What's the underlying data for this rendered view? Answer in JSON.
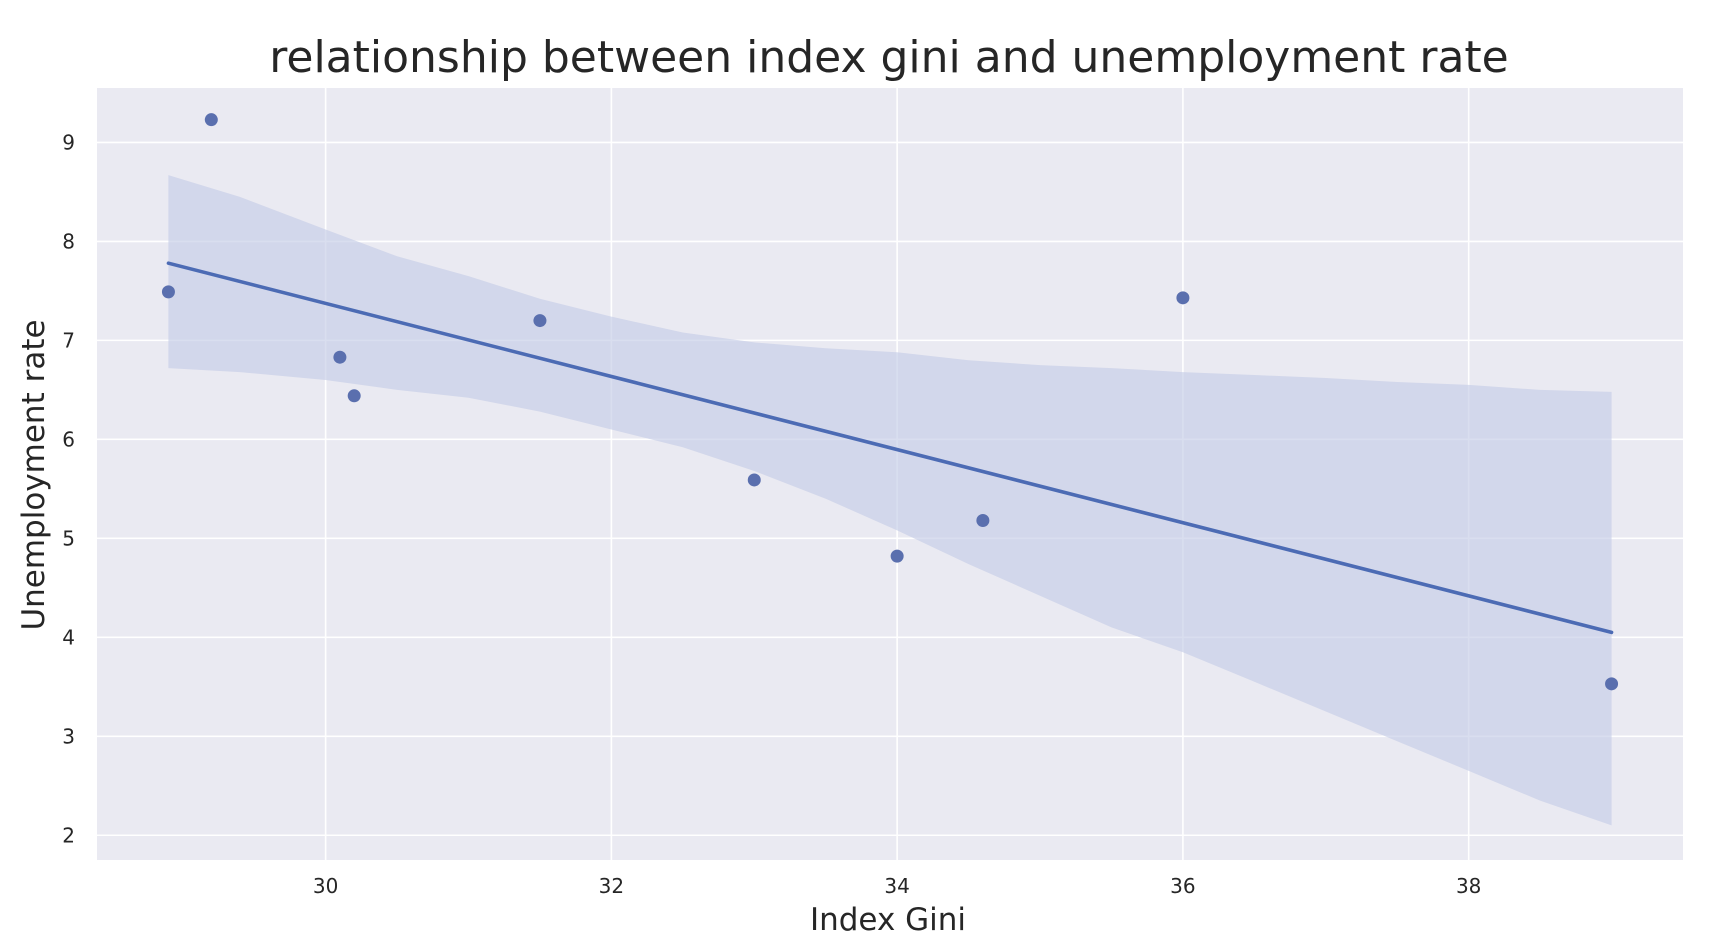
{
  "chart_data": {
    "type": "scatter",
    "title": "relationship between index gini and unemployment rate",
    "xlabel": "Index Gini",
    "ylabel": "Unemployment rate",
    "xlim": [
      28.4,
      39.5
    ],
    "ylim": [
      1.75,
      9.55
    ],
    "xticks": [
      30,
      32,
      34,
      36,
      38
    ],
    "yticks": [
      2,
      3,
      4,
      5,
      6,
      7,
      8,
      9
    ],
    "grid": true,
    "colors": {
      "background": "#eaeaf2",
      "grid": "#ffffff",
      "points": "#5a6fae",
      "line": "#4c6bb4",
      "band": "#c5cde6"
    },
    "points": [
      {
        "x": 28.9,
        "y": 7.49
      },
      {
        "x": 29.2,
        "y": 9.23
      },
      {
        "x": 30.1,
        "y": 6.83
      },
      {
        "x": 30.2,
        "y": 6.44
      },
      {
        "x": 31.5,
        "y": 7.2
      },
      {
        "x": 33.0,
        "y": 5.59
      },
      {
        "x": 34.0,
        "y": 4.82
      },
      {
        "x": 34.6,
        "y": 5.18
      },
      {
        "x": 36.0,
        "y": 7.43
      },
      {
        "x": 39.0,
        "y": 3.53
      }
    ],
    "regression": {
      "x": [
        28.9,
        39.0
      ],
      "y": [
        7.78,
        4.05
      ]
    },
    "confidence_band": {
      "x": [
        28.9,
        29.4,
        30.0,
        30.5,
        31.0,
        31.5,
        32.0,
        32.5,
        33.0,
        33.5,
        34.0,
        34.5,
        35.0,
        35.5,
        36.0,
        36.5,
        37.0,
        37.5,
        38.0,
        38.5,
        39.0
      ],
      "upper": [
        8.67,
        8.45,
        8.12,
        7.85,
        7.65,
        7.42,
        7.24,
        7.08,
        6.98,
        6.92,
        6.88,
        6.8,
        6.75,
        6.72,
        6.68,
        6.65,
        6.62,
        6.58,
        6.55,
        6.5,
        6.48
      ],
      "lower": [
        6.72,
        6.68,
        6.6,
        6.5,
        6.42,
        6.28,
        6.1,
        5.92,
        5.68,
        5.4,
        5.08,
        4.74,
        4.42,
        4.1,
        3.85,
        3.55,
        3.25,
        2.95,
        2.65,
        2.35,
        2.1
      ]
    }
  }
}
